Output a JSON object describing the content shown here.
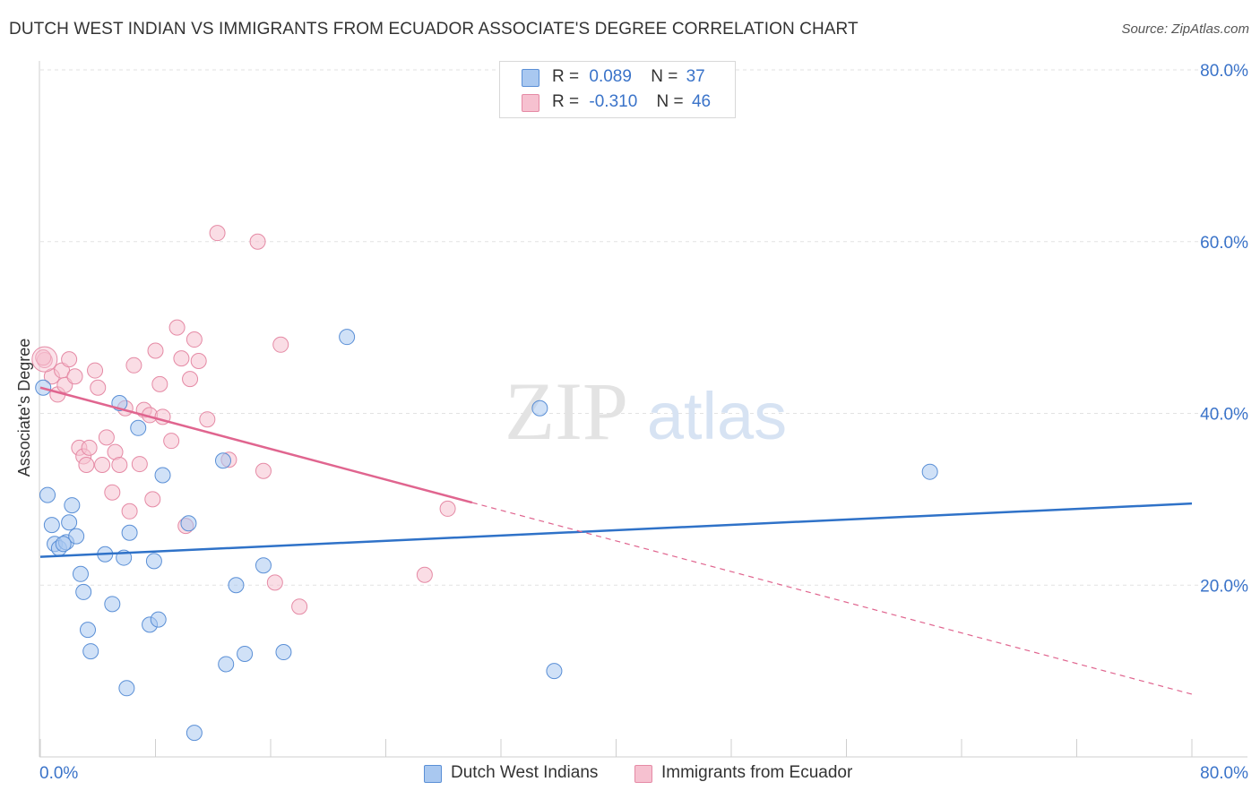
{
  "title": "DUTCH WEST INDIAN VS IMMIGRANTS FROM ECUADOR ASSOCIATE'S DEGREE CORRELATION CHART",
  "source": "Source: ZipAtlas.com",
  "watermark": {
    "zip": "ZIP",
    "atlas": "atlas"
  },
  "legend": {
    "r_label": "R =",
    "n_label": "N =",
    "series": [
      {
        "r": "0.089",
        "n": "37"
      },
      {
        "r": "-0.310",
        "n": "46"
      }
    ]
  },
  "colors": {
    "blue_fill": "#a9c8f0",
    "blue_stroke": "#5a8fd6",
    "blue_line": "#2f72c8",
    "pink_fill": "#f6c1d0",
    "pink_stroke": "#e58aa5",
    "pink_line": "#e0658f",
    "axis_text": "#3a73c9"
  },
  "chart_data": {
    "type": "scatter",
    "title": "DUTCH WEST INDIAN VS IMMIGRANTS FROM ECUADOR ASSOCIATE'S DEGREE CORRELATION CHART",
    "xlabel": "",
    "ylabel": "Associate's Degree",
    "xlim": [
      0,
      80
    ],
    "ylim": [
      0,
      80
    ],
    "x_tick_labels": [
      "0.0%",
      "80.0%"
    ],
    "y_ticks": [
      20,
      40,
      60,
      80
    ],
    "y_tick_labels": [
      "20.0%",
      "40.0%",
      "60.0%",
      "80.0%"
    ],
    "grid": true,
    "legend_position": "top-center",
    "series": [
      {
        "name": "Dutch West Indians",
        "r": 0.089,
        "n": 37,
        "trend": {
          "x": [
            0,
            80
          ],
          "y": [
            23.3,
            29.5
          ],
          "dashed_from": null
        },
        "points": [
          [
            0.2,
            43.0
          ],
          [
            0.5,
            30.5
          ],
          [
            0.8,
            27.0
          ],
          [
            1.0,
            24.8
          ],
          [
            1.3,
            24.3
          ],
          [
            1.8,
            25.0
          ],
          [
            2.0,
            27.3
          ],
          [
            2.2,
            29.3
          ],
          [
            2.5,
            25.7
          ],
          [
            2.8,
            21.3
          ],
          [
            3.0,
            19.2
          ],
          [
            3.3,
            14.8
          ],
          [
            3.5,
            12.3
          ],
          [
            4.5,
            23.6
          ],
          [
            5.0,
            17.8
          ],
          [
            5.5,
            41.2
          ],
          [
            5.8,
            23.2
          ],
          [
            6.0,
            8.0
          ],
          [
            6.2,
            26.1
          ],
          [
            6.8,
            38.3
          ],
          [
            7.6,
            15.4
          ],
          [
            7.9,
            22.8
          ],
          [
            8.2,
            16.0
          ],
          [
            8.5,
            32.8
          ],
          [
            10.3,
            27.2
          ],
          [
            10.7,
            2.8
          ],
          [
            12.7,
            34.5
          ],
          [
            12.9,
            10.8
          ],
          [
            13.6,
            20.0
          ],
          [
            14.2,
            12.0
          ],
          [
            15.5,
            22.3
          ],
          [
            16.9,
            12.2
          ],
          [
            21.3,
            48.9
          ],
          [
            34.7,
            40.6
          ],
          [
            35.7,
            10.0
          ],
          [
            61.8,
            33.2
          ],
          [
            1.6,
            24.8
          ]
        ]
      },
      {
        "name": "Immigrants from Ecuador",
        "r": -0.31,
        "n": 46,
        "trend": {
          "x": [
            0,
            80
          ],
          "y": [
            43.0,
            7.3
          ],
          "dashed_from": 30
        },
        "points": [
          [
            0.3,
            46.2
          ],
          [
            0.8,
            44.3
          ],
          [
            1.2,
            42.2
          ],
          [
            1.5,
            45.0
          ],
          [
            1.7,
            43.3
          ],
          [
            2.0,
            46.3
          ],
          [
            2.4,
            44.3
          ],
          [
            2.7,
            36.0
          ],
          [
            3.0,
            35.0
          ],
          [
            3.2,
            34.0
          ],
          [
            3.4,
            36.0
          ],
          [
            3.8,
            45.0
          ],
          [
            4.0,
            43.0
          ],
          [
            4.3,
            34.0
          ],
          [
            4.6,
            37.2
          ],
          [
            5.0,
            30.8
          ],
          [
            5.2,
            35.5
          ],
          [
            5.5,
            34.0
          ],
          [
            5.9,
            40.6
          ],
          [
            6.2,
            28.6
          ],
          [
            6.5,
            45.6
          ],
          [
            6.9,
            34.1
          ],
          [
            7.2,
            40.4
          ],
          [
            7.6,
            39.8
          ],
          [
            7.8,
            30.0
          ],
          [
            8.0,
            47.3
          ],
          [
            8.3,
            43.4
          ],
          [
            8.5,
            39.6
          ],
          [
            9.1,
            36.8
          ],
          [
            9.5,
            50.0
          ],
          [
            9.8,
            46.4
          ],
          [
            10.1,
            26.9
          ],
          [
            10.4,
            44.0
          ],
          [
            10.7,
            48.6
          ],
          [
            11.0,
            46.1
          ],
          [
            11.6,
            39.3
          ],
          [
            12.3,
            61.0
          ],
          [
            13.1,
            34.6
          ],
          [
            15.1,
            60.0
          ],
          [
            15.5,
            33.3
          ],
          [
            16.3,
            20.3
          ],
          [
            16.7,
            48.0
          ],
          [
            18.0,
            17.5
          ],
          [
            26.7,
            21.2
          ],
          [
            28.3,
            28.9
          ],
          [
            0.2,
            46.5
          ]
        ]
      }
    ]
  }
}
